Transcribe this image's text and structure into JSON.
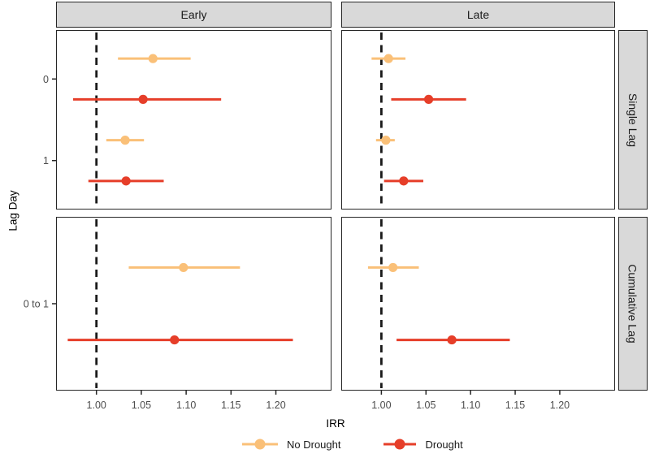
{
  "chart_data": {
    "type": "scatter",
    "subtype": "faceted-forest-plot-with-ci",
    "title": "",
    "xlabel": "IRR",
    "ylabel": "Lag Day",
    "xlim": [
      0.955,
      1.262
    ],
    "x_ticks": [
      1.0,
      1.05,
      1.1,
      1.15,
      1.2
    ],
    "x_tick_labels": [
      "1.00",
      "1.05",
      "1.10",
      "1.15",
      "1.20"
    ],
    "reference_line": 1.0,
    "grid": "off",
    "legend_position": "bottom",
    "col_facets": [
      "Early",
      "Late"
    ],
    "row_facets": [
      {
        "label": "Single Lag",
        "categories": [
          "0",
          "1"
        ]
      },
      {
        "label": "Cumulative Lag",
        "categories": [
          "0 to 1"
        ]
      }
    ],
    "series": [
      {
        "name": "No Drought",
        "color": "#FAC078"
      },
      {
        "name": "Drought",
        "color": "#E63E29"
      }
    ],
    "points": [
      {
        "facet_col": "Early",
        "facet_row": "Single Lag",
        "category": "0",
        "series": "No Drought",
        "irr": 1.063,
        "lo": 1.024,
        "hi": 1.105
      },
      {
        "facet_col": "Early",
        "facet_row": "Single Lag",
        "category": "0",
        "series": "Drought",
        "irr": 1.052,
        "lo": 0.974,
        "hi": 1.139
      },
      {
        "facet_col": "Early",
        "facet_row": "Single Lag",
        "category": "1",
        "series": "No Drought",
        "irr": 1.032,
        "lo": 1.011,
        "hi": 1.053
      },
      {
        "facet_col": "Early",
        "facet_row": "Single Lag",
        "category": "1",
        "series": "Drought",
        "irr": 1.033,
        "lo": 0.991,
        "hi": 1.075
      },
      {
        "facet_col": "Late",
        "facet_row": "Single Lag",
        "category": "0",
        "series": "No Drought",
        "irr": 1.008,
        "lo": 0.989,
        "hi": 1.027
      },
      {
        "facet_col": "Late",
        "facet_row": "Single Lag",
        "category": "0",
        "series": "Drought",
        "irr": 1.053,
        "lo": 1.011,
        "hi": 1.095
      },
      {
        "facet_col": "Late",
        "facet_row": "Single Lag",
        "category": "1",
        "series": "No Drought",
        "irr": 1.005,
        "lo": 0.994,
        "hi": 1.015
      },
      {
        "facet_col": "Late",
        "facet_row": "Single Lag",
        "category": "1",
        "series": "Drought",
        "irr": 1.025,
        "lo": 1.003,
        "hi": 1.047
      },
      {
        "facet_col": "Early",
        "facet_row": "Cumulative Lag",
        "category": "0 to 1",
        "series": "No Drought",
        "irr": 1.097,
        "lo": 1.036,
        "hi": 1.16
      },
      {
        "facet_col": "Early",
        "facet_row": "Cumulative Lag",
        "category": "0 to 1",
        "series": "Drought",
        "irr": 1.087,
        "lo": 0.968,
        "hi": 1.219
      },
      {
        "facet_col": "Late",
        "facet_row": "Cumulative Lag",
        "category": "0 to 1",
        "series": "No Drought",
        "irr": 1.013,
        "lo": 0.985,
        "hi": 1.042
      },
      {
        "facet_col": "Late",
        "facet_row": "Cumulative Lag",
        "category": "0 to 1",
        "series": "Drought",
        "irr": 1.079,
        "lo": 1.017,
        "hi": 1.144
      }
    ],
    "colors": {
      "strip_fill": "#D9D9D9",
      "panel_border": "#262626",
      "reference_line": "#1A1A1A",
      "tick": "#262626",
      "tick_label": "#4D4D4D"
    }
  }
}
